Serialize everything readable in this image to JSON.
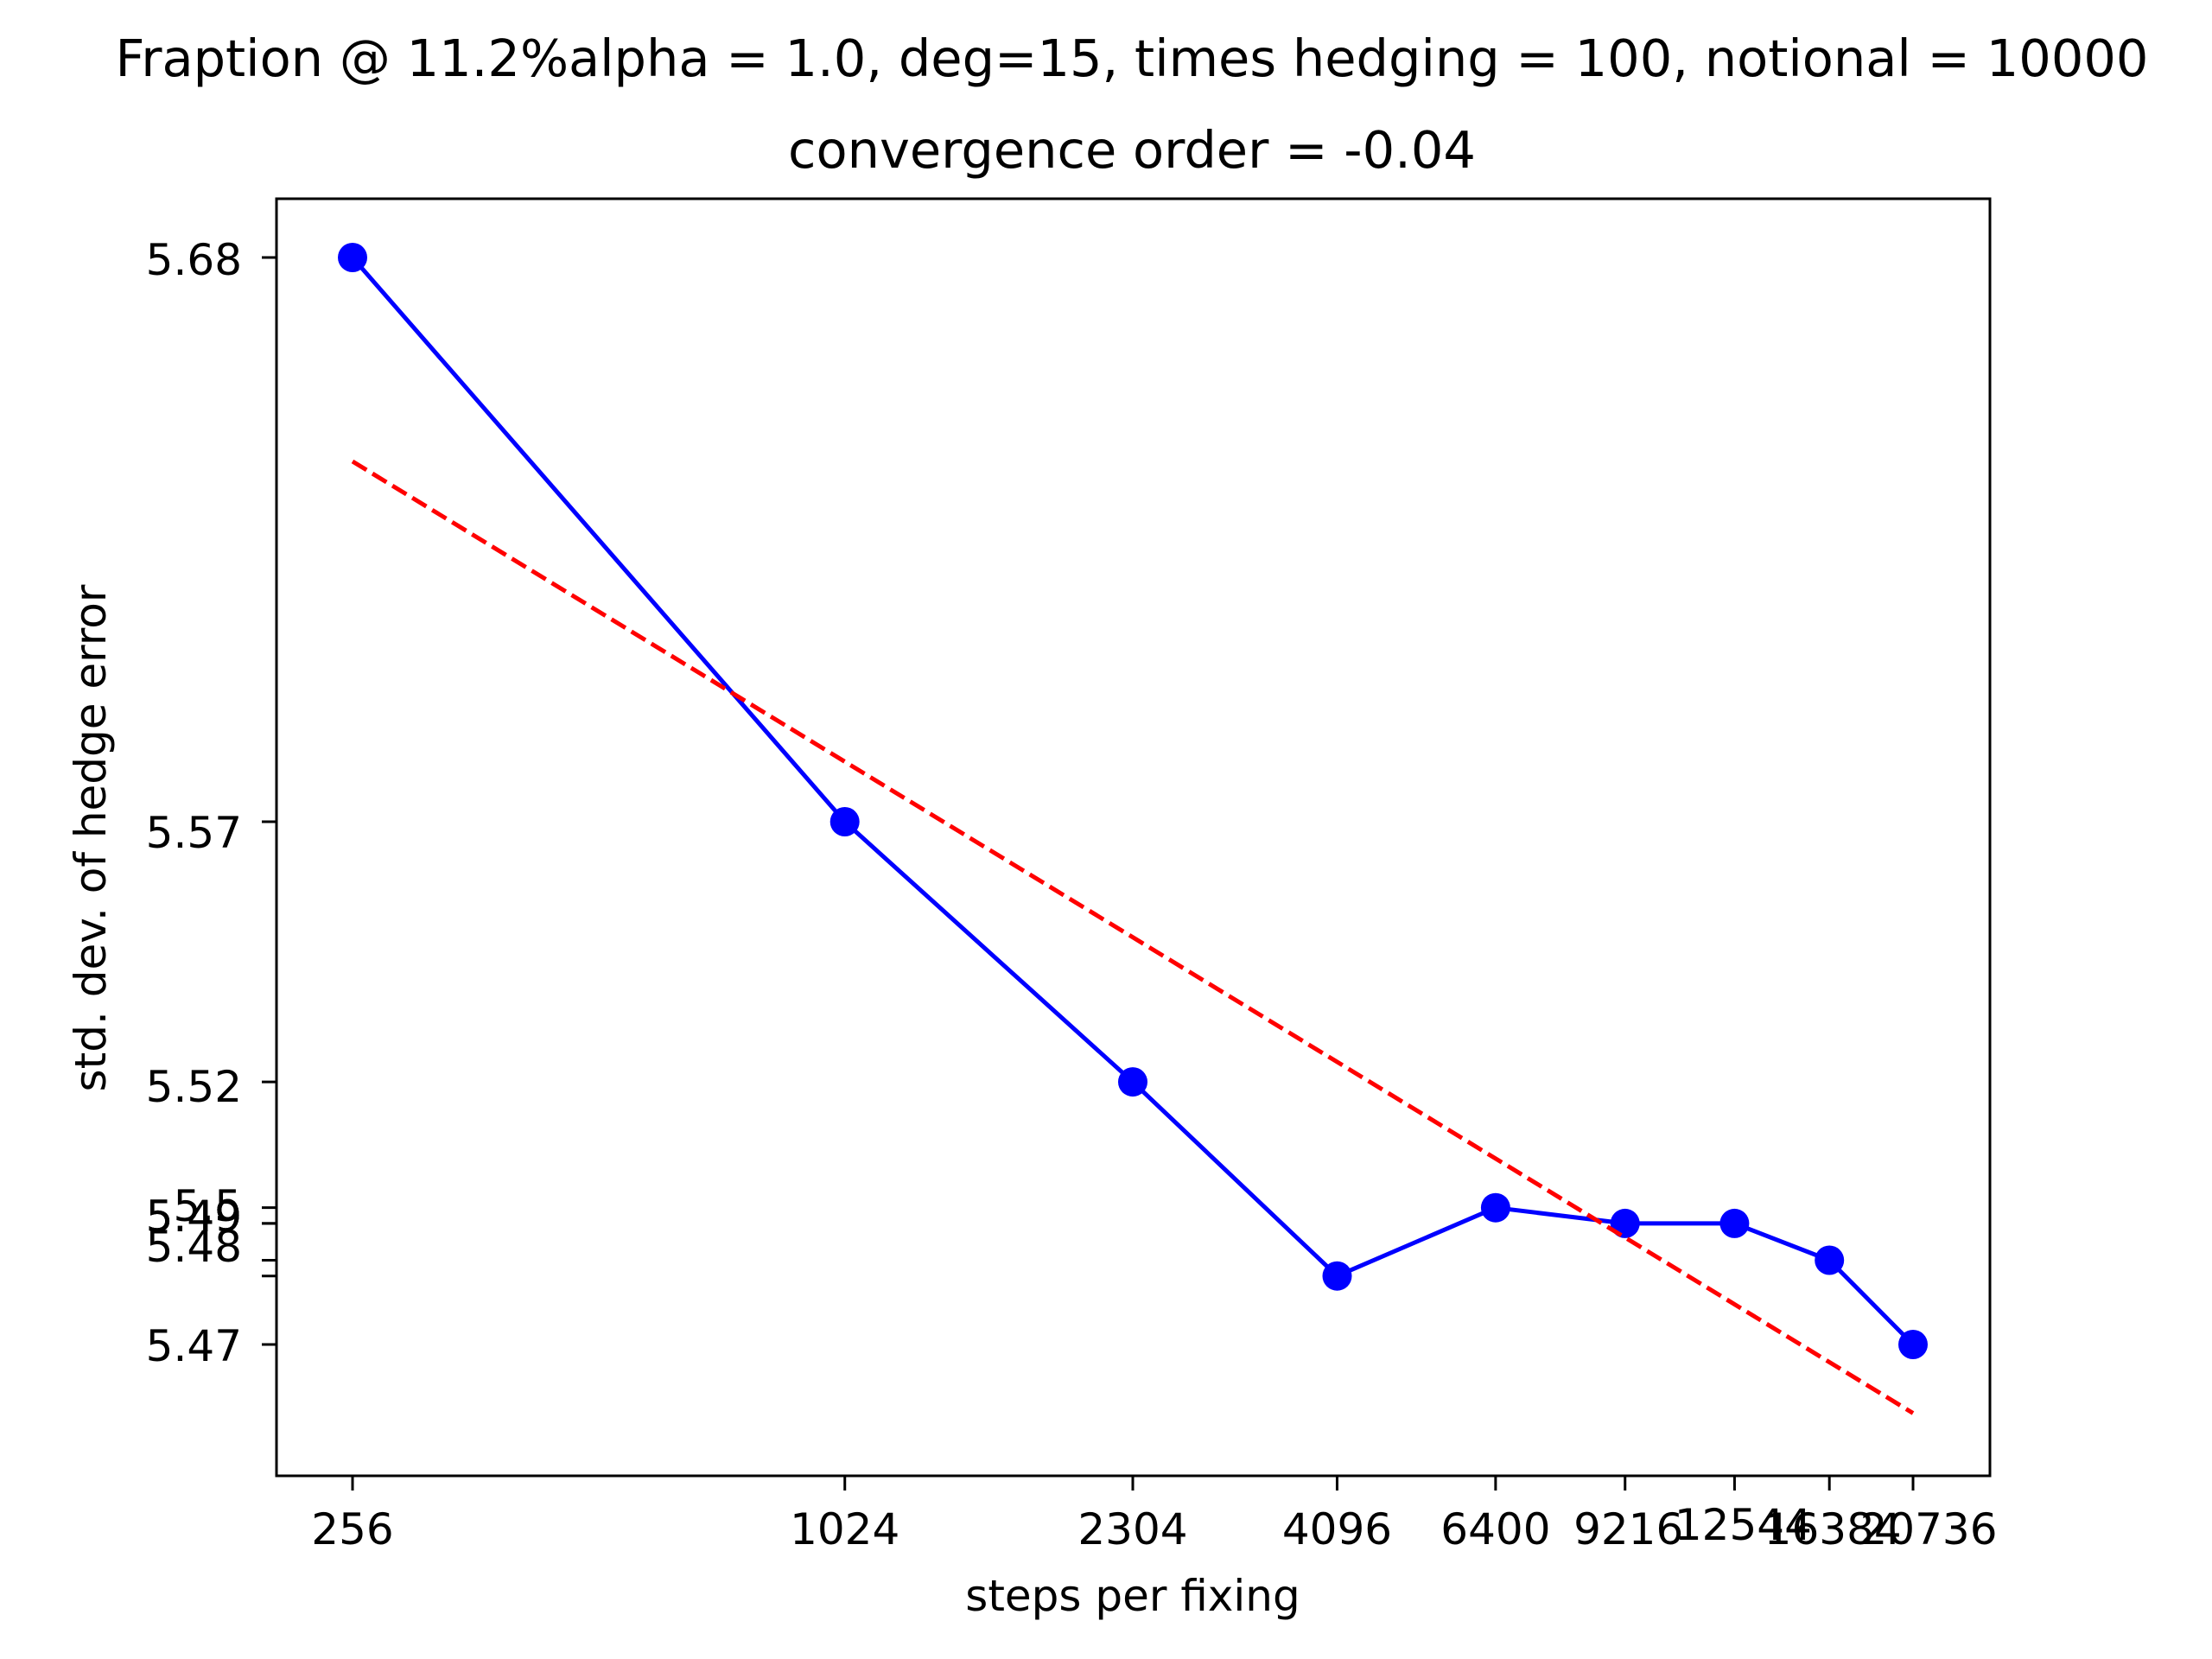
{
  "chart_data": {
    "type": "line",
    "title": "Fraption @ 11.2%alpha = 1.0, deg=15, times hedging = 100, notional = 10000",
    "subtitle": "convergence order = -0.04",
    "xlabel": "steps per fixing",
    "ylabel": "std. dev. of hedge error",
    "x_scale": "log",
    "y_scale": "log",
    "grid": false,
    "x": [
      256,
      1024,
      2304,
      4096,
      6400,
      9216,
      12544,
      16384,
      20736
    ],
    "x_tick_labels": [
      "256",
      "1024",
      "2304",
      "4096",
      "6400",
      "9216",
      "12544",
      "16384",
      "20736"
    ],
    "y_tick_labels": [
      "5.68",
      "5.57",
      "5.52",
      "5.5",
      "5.49",
      "5.49",
      "5.49",
      "5.48",
      "5.47"
    ],
    "series": [
      {
        "values": [
          5.68,
          5.57,
          5.52,
          5.483,
          5.496,
          5.493,
          5.493,
          5.486,
          5.47
        ],
        "color": "#0000ff",
        "style": "solid",
        "marker": "circle"
      },
      {
        "x": [
          256,
          20736
        ],
        "values": [
          5.64,
          5.457
        ],
        "color": "#ff0000",
        "style": "dashed",
        "marker": "none"
      }
    ]
  }
}
